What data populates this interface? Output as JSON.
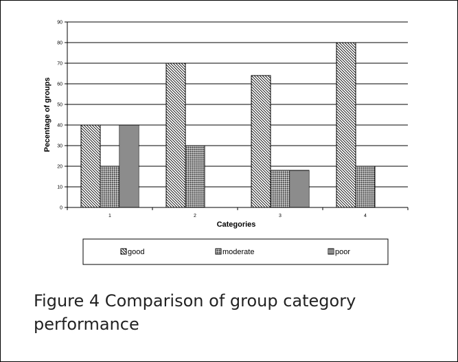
{
  "chart_data": {
    "type": "bar",
    "categories": [
      "1",
      "2",
      "3",
      "4"
    ],
    "series": [
      {
        "name": "good",
        "values": [
          40,
          70,
          64,
          80
        ],
        "pattern": "diagonal"
      },
      {
        "name": "moderate",
        "values": [
          20,
          30,
          18,
          20
        ],
        "pattern": "dots"
      },
      {
        "name": "poor",
        "values": [
          40,
          0,
          18,
          0
        ],
        "pattern": "vertical"
      }
    ],
    "xlabel": "Categories",
    "ylabel": "Pecentage of groups",
    "ylim": [
      0,
      90
    ],
    "yticks": [
      0,
      10,
      20,
      30,
      40,
      50,
      60,
      70,
      80,
      90
    ],
    "grid": true,
    "legend_position": "bottom"
  },
  "caption": "Figure 4 Comparison of group category performance"
}
